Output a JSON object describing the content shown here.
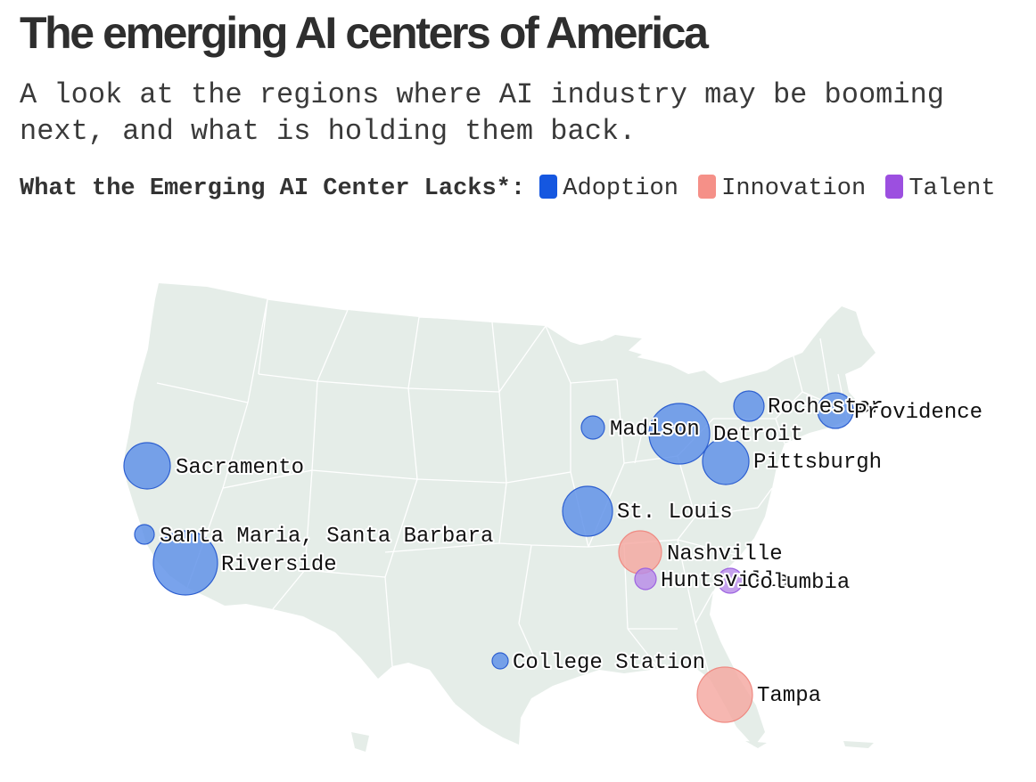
{
  "title": "The emerging AI centers of America",
  "subtitle": "A look at the regions where AI industry may be booming next, and what is holding them back.",
  "legend": {
    "title": "What the Emerging AI Center Lacks*:",
    "items": [
      {
        "label": "Adoption",
        "color": "#1557e0"
      },
      {
        "label": "Innovation",
        "color": "#f59088"
      },
      {
        "label": "Talent",
        "color": "#9c4fe0"
      }
    ]
  },
  "colors": {
    "land": "#e5ede8",
    "borders": "#ffffff",
    "adoption_fill": "#5c8fe8",
    "innovation_fill": "#f4a7a0",
    "talent_fill": "#b78be8"
  },
  "cities": [
    {
      "name": "Sacramento",
      "lacks": "Adoption"
    },
    {
      "name": "Santa Maria, Santa Barbara",
      "lacks": "Adoption"
    },
    {
      "name": "Riverside",
      "lacks": "Adoption"
    },
    {
      "name": "Madison",
      "lacks": "Adoption"
    },
    {
      "name": "Detroit",
      "lacks": "Adoption"
    },
    {
      "name": "Rochester",
      "lacks": "Adoption"
    },
    {
      "name": "Providence",
      "lacks": "Adoption"
    },
    {
      "name": "Pittsburgh",
      "lacks": "Adoption"
    },
    {
      "name": "St. Louis",
      "lacks": "Adoption"
    },
    {
      "name": "Nashville",
      "lacks": "Innovation"
    },
    {
      "name": "Huntsville",
      "lacks": "Talent"
    },
    {
      "name": "Columbia",
      "lacks": "Talent"
    },
    {
      "name": "College Station",
      "lacks": "Adoption"
    },
    {
      "name": "Tampa",
      "lacks": "Innovation"
    }
  ]
}
